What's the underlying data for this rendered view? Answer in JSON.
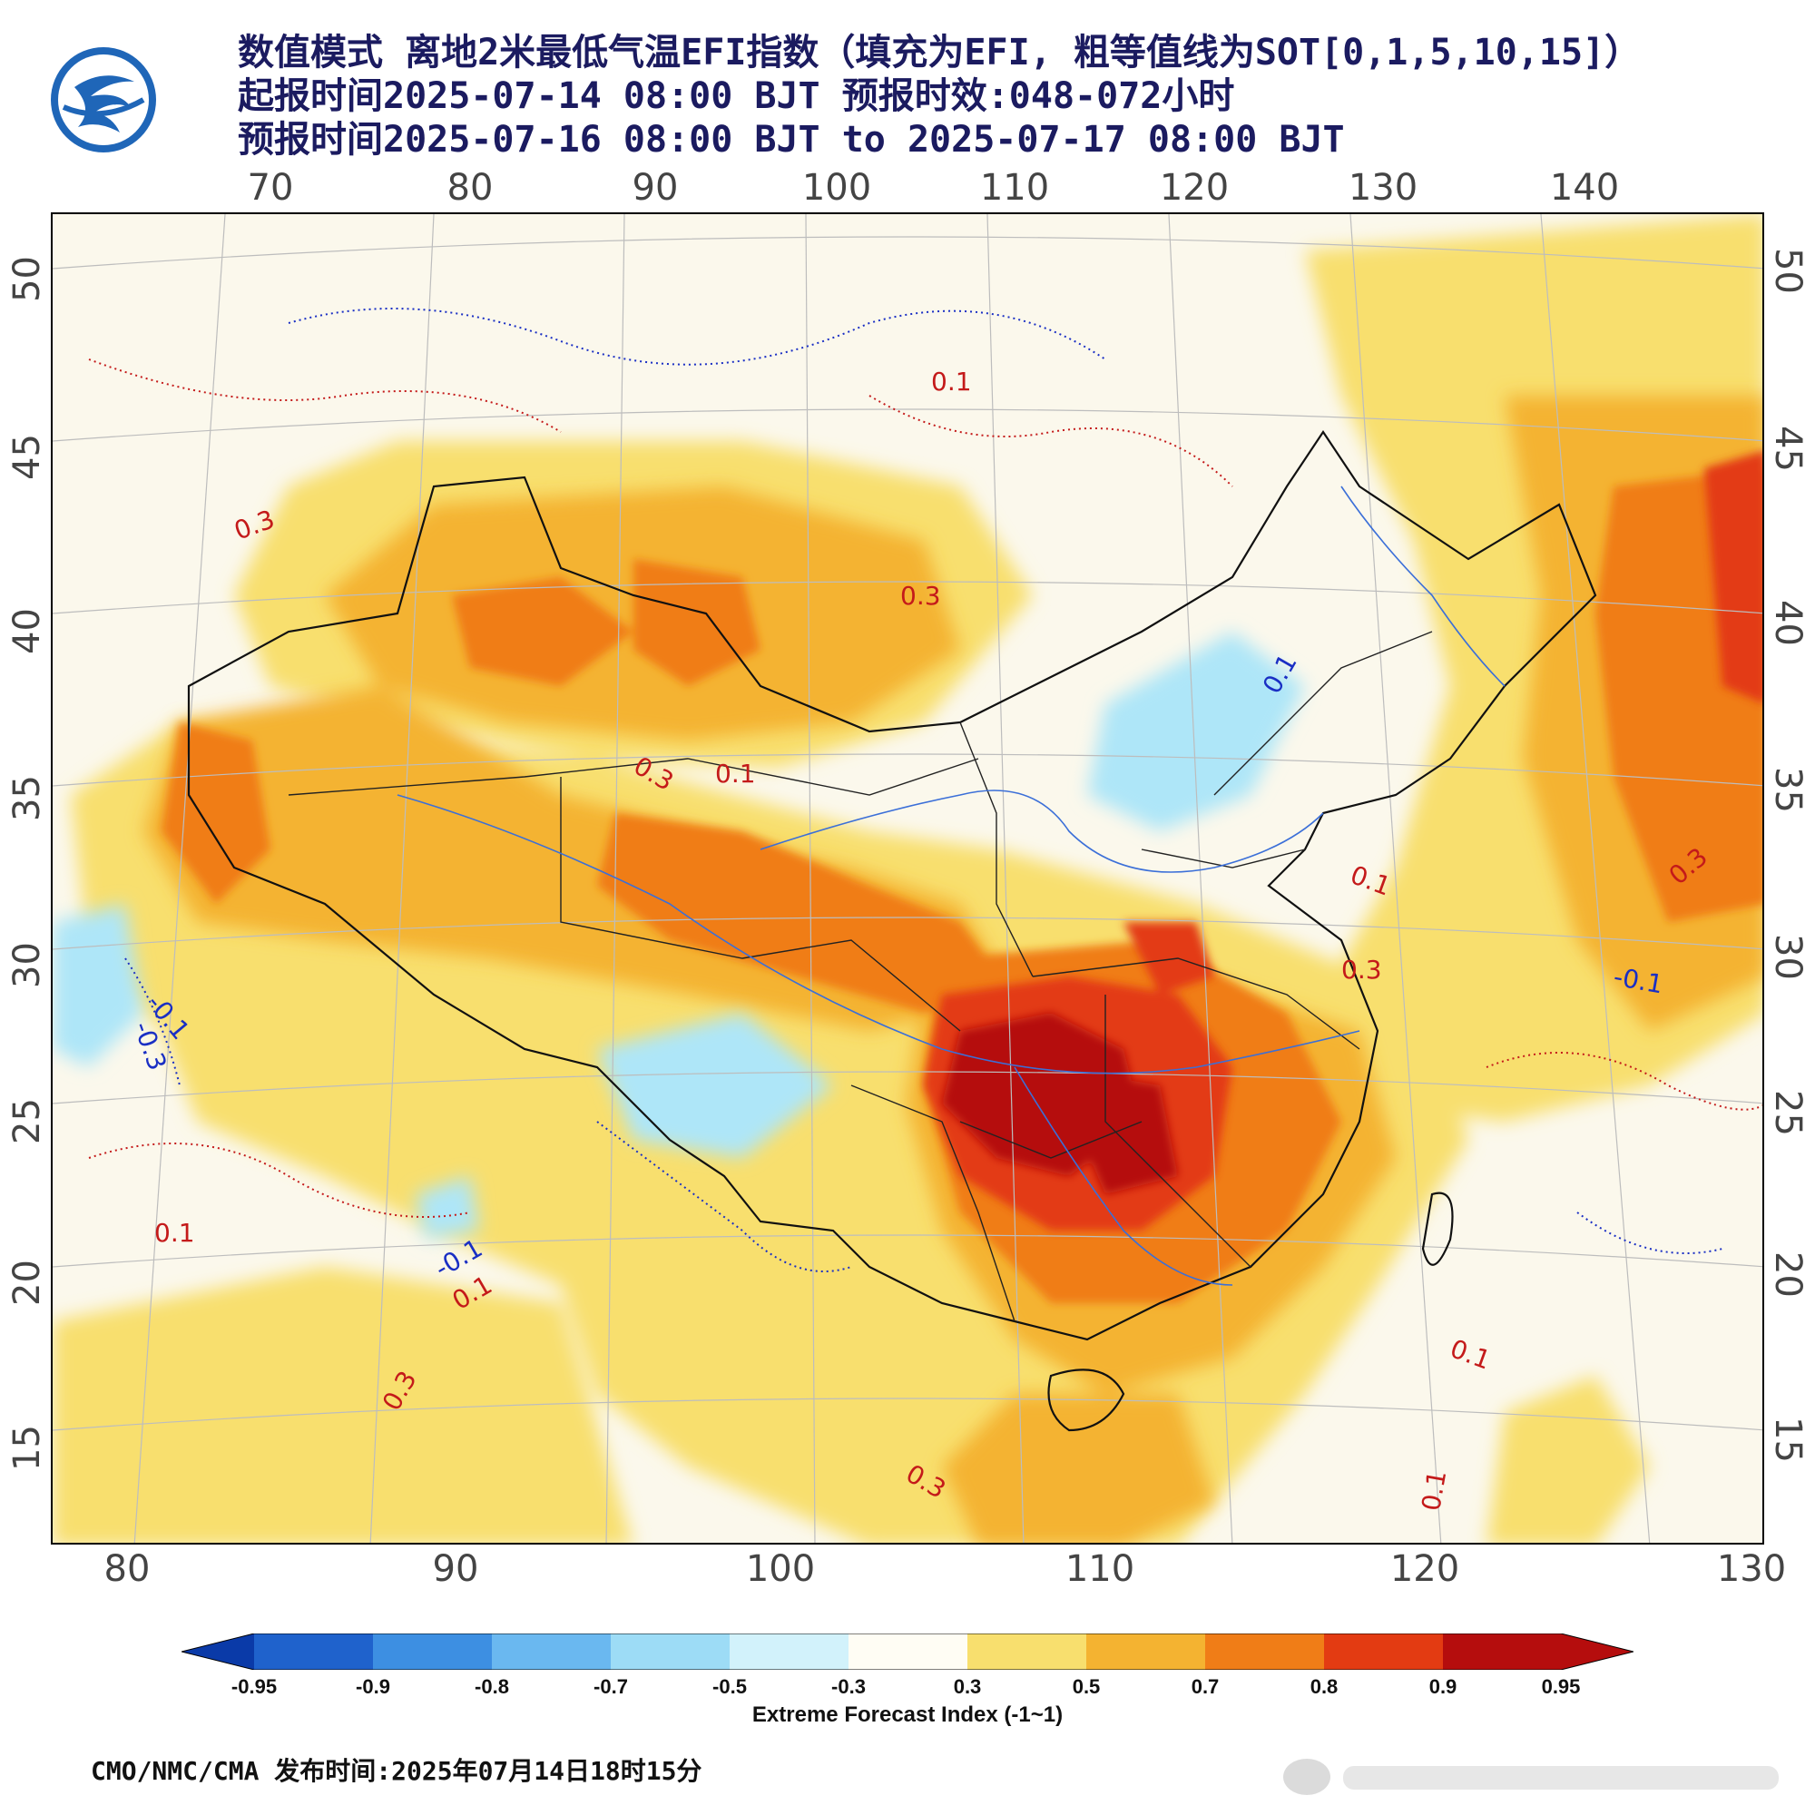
{
  "title": {
    "line1": "数值模式 离地2米最低气温EFI指数（填充为EFI, 粗等值线为SOT[0,1,5,10,15]）",
    "line2": "起报时间2025-07-14 08:00 BJT 预报时效:048-072小时",
    "line3": "预报时间2025-07-16 08:00 BJT to 2025-07-17 08:00 BJT"
  },
  "logo_icon": "cma-logo-icon",
  "axes": {
    "top_lon_ticks": [
      "70",
      "80",
      "90",
      "100",
      "110",
      "120",
      "130",
      "140"
    ],
    "bottom_lon_ticks": [
      "80",
      "90",
      "100",
      "110",
      "120",
      "130"
    ],
    "left_lat_ticks": [
      "50",
      "45",
      "40",
      "35",
      "30",
      "25",
      "20",
      "15"
    ],
    "right_lat_ticks": [
      "50",
      "45",
      "40",
      "35",
      "30",
      "25",
      "20",
      "15"
    ]
  },
  "contour_labels": [
    {
      "text": "0.1",
      "color": "#c41a1a"
    },
    {
      "text": "0.3",
      "color": "#c41a1a"
    },
    {
      "text": "0.3",
      "color": "#c41a1a"
    },
    {
      "text": "0.3",
      "color": "#c41a1a"
    },
    {
      "text": "0.1",
      "color": "#c41a1a"
    },
    {
      "text": "-0.1",
      "color": "#1a2fc4"
    },
    {
      "text": "-0.3",
      "color": "#1a2fc4"
    },
    {
      "text": "0.1",
      "color": "#c41a1a"
    },
    {
      "text": "-0.1",
      "color": "#1a2fc4"
    },
    {
      "text": "0.1",
      "color": "#c41a1a"
    },
    {
      "text": "0.3",
      "color": "#c41a1a"
    },
    {
      "text": "0.3",
      "color": "#c41a1a"
    },
    {
      "text": "0.1",
      "color": "#c41a1a"
    },
    {
      "text": "0.3",
      "color": "#c41a1a"
    },
    {
      "text": "-0.1",
      "color": "#1a2fc4"
    },
    {
      "text": "0.1",
      "color": "#c41a1a"
    },
    {
      "text": "0.1",
      "color": "#c41a1a"
    },
    {
      "text": "0.3",
      "color": "#c41a1a"
    },
    {
      "text": "0.1",
      "color": "#c41a1a"
    }
  ],
  "colorbar": {
    "labels": [
      "-0.95",
      "-0.9",
      "-0.8",
      "-0.7",
      "-0.5",
      "-0.3",
      "0.3",
      "0.5",
      "0.7",
      "0.8",
      "0.9",
      "0.95"
    ],
    "colors": [
      "#0a3aa8",
      "#1f62cc",
      "#3d8fe2",
      "#6ab8f0",
      "#9ddcf6",
      "#d2f2fb",
      "#fffdf4",
      "#f8df6e",
      "#f4b331",
      "#f07d17",
      "#e33b12",
      "#b50d0d"
    ],
    "title": "Extreme Forecast Index (-1~1)"
  },
  "footer": "CMO/NMC/CMA 发布时间:2025年07月14日18时15分",
  "watermark_icon": "weibo-watermark-icon"
}
